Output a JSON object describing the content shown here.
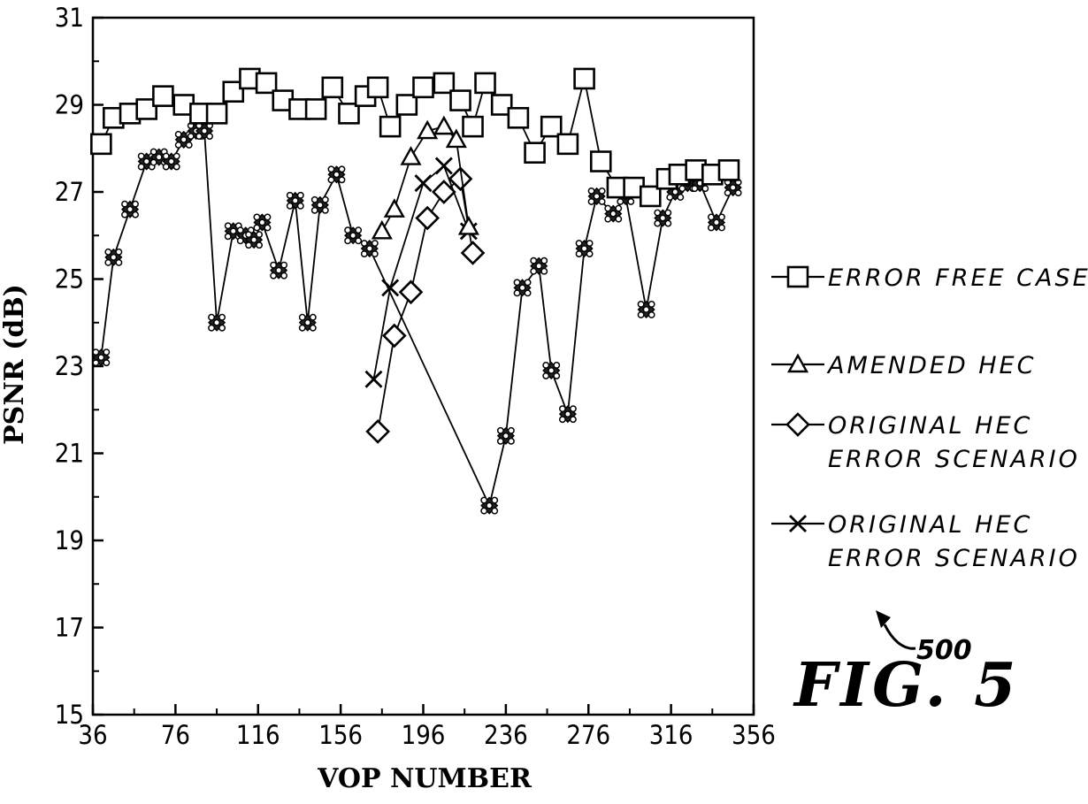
{
  "chart_data": {
    "type": "line",
    "title": "",
    "xlabel": "VOP NUMBER",
    "ylabel": "PSNR (dB)",
    "xlim": [
      36,
      356
    ],
    "ylim": [
      15,
      31
    ],
    "xticks": [
      "36",
      "76",
      "116",
      "156",
      "196",
      "236",
      "276",
      "316",
      "356"
    ],
    "yticks": [
      "15",
      "17",
      "19",
      "21",
      "23",
      "25",
      "27",
      "29",
      "31"
    ],
    "grid": false,
    "legend_position": "right",
    "series": [
      {
        "name": "ERROR FREE CASE",
        "marker": "square",
        "points": [
          [
            40,
            28.1
          ],
          [
            46,
            28.7
          ],
          [
            54,
            28.8
          ],
          [
            62,
            28.9
          ],
          [
            70,
            29.2
          ],
          [
            80,
            29.0
          ],
          [
            88,
            28.8
          ],
          [
            96,
            28.8
          ],
          [
            104,
            29.3
          ],
          [
            112,
            29.6
          ],
          [
            120,
            29.5
          ],
          [
            128,
            29.1
          ],
          [
            136,
            28.9
          ],
          [
            144,
            28.9
          ],
          [
            152,
            29.4
          ],
          [
            160,
            28.8
          ],
          [
            168,
            29.2
          ],
          [
            174,
            29.4
          ],
          [
            180,
            28.5
          ],
          [
            188,
            29.0
          ],
          [
            196,
            29.4
          ],
          [
            206,
            29.5
          ],
          [
            214,
            29.1
          ],
          [
            220,
            28.5
          ],
          [
            226,
            29.5
          ],
          [
            234,
            29.0
          ],
          [
            242,
            28.7
          ],
          [
            250,
            27.9
          ],
          [
            258,
            28.5
          ],
          [
            266,
            28.1
          ],
          [
            274,
            29.6
          ],
          [
            282,
            27.7
          ],
          [
            290,
            27.1
          ],
          [
            298,
            27.1
          ],
          [
            306,
            26.9
          ],
          [
            314,
            27.3
          ],
          [
            320,
            27.4
          ],
          [
            328,
            27.5
          ],
          [
            336,
            27.4
          ],
          [
            344,
            27.5
          ]
        ]
      },
      {
        "name": "AMENDED HEC",
        "marker": "triangle",
        "points": [
          [
            176,
            26.1
          ],
          [
            182,
            26.6
          ],
          [
            190,
            27.8
          ],
          [
            198,
            28.4
          ],
          [
            206,
            28.5
          ],
          [
            212,
            28.2
          ],
          [
            218,
            26.2
          ]
        ]
      },
      {
        "name": "ORIGINAL HEC",
        "name_line2": "ERROR SCENARIO b",
        "marker": "diamond",
        "points": [
          [
            174,
            21.5
          ],
          [
            182,
            23.7
          ],
          [
            190,
            24.7
          ],
          [
            198,
            26.4
          ],
          [
            206,
            27.0
          ],
          [
            214,
            27.3
          ],
          [
            220,
            25.6
          ]
        ]
      },
      {
        "name": "ORIGINAL HEC",
        "name_line2": "ERROR SCENARIO c",
        "marker": "x",
        "points": [
          [
            172,
            22.7
          ],
          [
            180,
            24.8
          ],
          [
            196,
            27.2
          ],
          [
            206,
            27.6
          ],
          [
            218,
            26.1
          ]
        ]
      },
      {
        "name": "",
        "marker": "dot-cluster",
        "points": [
          [
            40,
            23.2
          ],
          [
            46,
            25.5
          ],
          [
            54,
            26.6
          ],
          [
            62,
            27.7
          ],
          [
            68,
            27.8
          ],
          [
            74,
            27.7
          ],
          [
            80,
            28.2
          ],
          [
            86,
            28.4
          ],
          [
            90,
            28.4
          ],
          [
            96,
            24.0
          ],
          [
            104,
            26.1
          ],
          [
            110,
            26.0
          ],
          [
            114,
            25.9
          ],
          [
            118,
            26.3
          ],
          [
            126,
            25.2
          ],
          [
            134,
            26.8
          ],
          [
            140,
            24.0
          ],
          [
            146,
            26.7
          ],
          [
            154,
            27.4
          ],
          [
            162,
            26.0
          ],
          [
            170,
            25.7
          ],
          [
            228,
            19.8
          ],
          [
            236,
            21.4
          ],
          [
            244,
            24.8
          ],
          [
            252,
            25.3
          ],
          [
            258,
            22.9
          ],
          [
            266,
            21.9
          ],
          [
            274,
            25.7
          ],
          [
            280,
            26.9
          ],
          [
            288,
            26.5
          ],
          [
            294,
            26.9
          ],
          [
            304,
            24.3
          ],
          [
            312,
            26.4
          ],
          [
            318,
            27.0
          ],
          [
            324,
            27.2
          ],
          [
            330,
            27.2
          ],
          [
            338,
            26.3
          ],
          [
            346,
            27.1
          ]
        ]
      }
    ]
  },
  "figure": {
    "label": "FIG. 5",
    "reference_number": "500"
  }
}
